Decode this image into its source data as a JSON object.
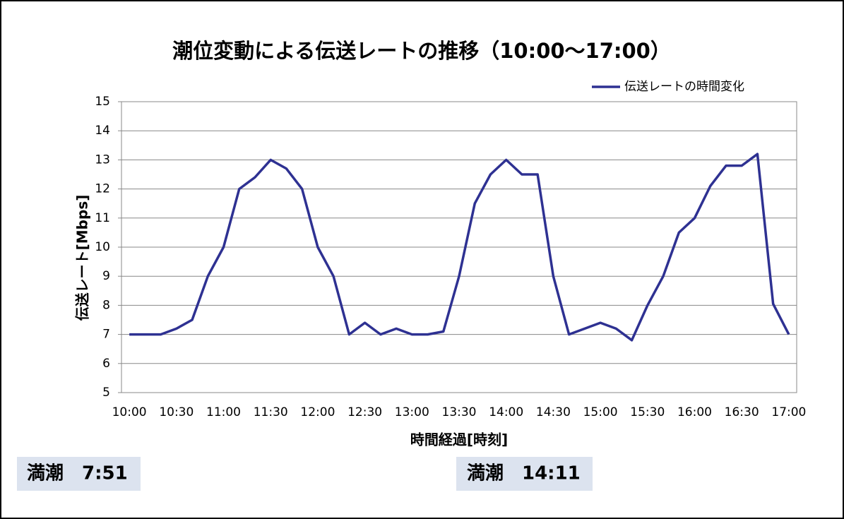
{
  "chart_data": {
    "type": "line",
    "title": "潮位変動による伝送レートの推移（10:00〜17:00）",
    "x_label": "時間経過[時刻]",
    "y_label": "伝送レート[Mbps]",
    "categories": [
      "10:00",
      null,
      null,
      "10:30",
      null,
      null,
      "11:00",
      null,
      null,
      "11:30",
      null,
      null,
      "12:00",
      null,
      null,
      "12:30",
      null,
      null,
      "13:00",
      null,
      null,
      "13:30",
      null,
      null,
      "14:00",
      null,
      null,
      "14:30",
      null,
      null,
      "15:00",
      null,
      null,
      "15:30",
      null,
      null,
      "16:00",
      null,
      null,
      "16:30",
      null,
      null,
      "17:00"
    ],
    "series": [
      {
        "name": "伝送レートの時間変化",
        "color": "#2e3192",
        "values": [
          7,
          7,
          7,
          7.2,
          7.5,
          9,
          10,
          12,
          12.4,
          13,
          12.7,
          12,
          10,
          9,
          7,
          7.4,
          7,
          7.2,
          7,
          7,
          7.1,
          9,
          11.5,
          12.5,
          13,
          12.5,
          12.5,
          9,
          7,
          7.2,
          7.4,
          7.2,
          6.8,
          8,
          9,
          10.5,
          11,
          12.1,
          12.8,
          12.8,
          13.2,
          8.05,
          7
        ]
      }
    ],
    "ylim": [
      5,
      15
    ],
    "yticks": [
      5,
      6,
      7,
      8,
      9,
      10,
      11,
      12,
      13,
      14,
      15
    ],
    "grid": true,
    "legend": "top-right",
    "annotations": [
      "満潮　7:51",
      "満潮　14:11"
    ]
  }
}
